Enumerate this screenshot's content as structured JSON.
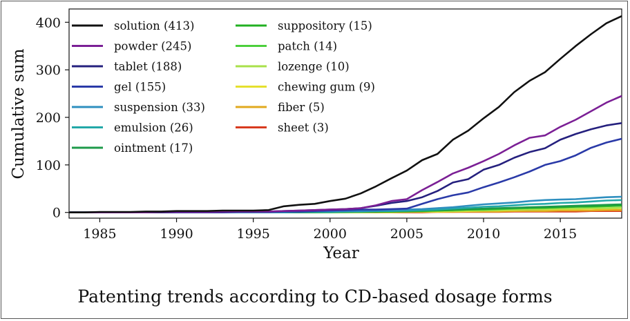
{
  "caption": "Patenting trends according to CD-based dosage forms",
  "chart_data": {
    "type": "line",
    "title": "",
    "xlabel": "Year",
    "ylabel": "Cumulative sum",
    "xlim": [
      1983,
      2019
    ],
    "ylim": [
      -12,
      428
    ],
    "x_ticks": [
      1985,
      1990,
      1995,
      2000,
      2005,
      2010,
      2015
    ],
    "y_ticks": [
      0,
      100,
      200,
      300,
      400
    ],
    "grid": false,
    "legend_position": "top-left",
    "legend_columns": 2,
    "x": [
      1983,
      1984,
      1985,
      1986,
      1987,
      1988,
      1989,
      1990,
      1991,
      1992,
      1993,
      1994,
      1995,
      1996,
      1997,
      1998,
      1999,
      2000,
      2001,
      2002,
      2003,
      2004,
      2005,
      2006,
      2007,
      2008,
      2009,
      2010,
      2011,
      2012,
      2013,
      2014,
      2015,
      2016,
      2017,
      2018,
      2019
    ],
    "series": [
      {
        "name": "solution (413)",
        "color": "#111111",
        "values": [
          0,
          0,
          1,
          1,
          1,
          2,
          2,
          3,
          3,
          3,
          4,
          4,
          4,
          5,
          13,
          16,
          18,
          24,
          29,
          40,
          55,
          72,
          88,
          110,
          123,
          153,
          172,
          198,
          222,
          253,
          277,
          295,
          323,
          350,
          375,
          398,
          413
        ]
      },
      {
        "name": "powder (245)",
        "color": "#7b1f95",
        "values": [
          0,
          0,
          0,
          0,
          0,
          0,
          1,
          1,
          1,
          1,
          2,
          2,
          2,
          2,
          3,
          4,
          5,
          6,
          7,
          9,
          15,
          24,
          28,
          47,
          64,
          82,
          94,
          108,
          123,
          141,
          157,
          162,
          180,
          195,
          213,
          231,
          245
        ]
      },
      {
        "name": "tablet (188)",
        "color": "#25207e",
        "values": [
          0,
          0,
          0,
          0,
          0,
          0,
          0,
          1,
          1,
          1,
          1,
          2,
          2,
          2,
          3,
          4,
          5,
          6,
          7,
          9,
          14,
          20,
          24,
          32,
          45,
          63,
          70,
          90,
          100,
          115,
          127,
          135,
          153,
          165,
          175,
          183,
          188
        ]
      },
      {
        "name": "gel (155)",
        "color": "#2a3aa8",
        "values": [
          0,
          0,
          0,
          0,
          0,
          0,
          0,
          0,
          0,
          0,
          0,
          1,
          1,
          1,
          2,
          2,
          3,
          4,
          5,
          6,
          6,
          7,
          8,
          18,
          28,
          36,
          42,
          53,
          63,
          74,
          86,
          100,
          108,
          120,
          136,
          147,
          155
        ]
      },
      {
        "name": "suspension (33)",
        "color": "#2e8fbf",
        "values": [
          0,
          0,
          0,
          0,
          0,
          0,
          0,
          0,
          0,
          0,
          0,
          0,
          0,
          0,
          1,
          1,
          2,
          2,
          3,
          3,
          4,
          5,
          6,
          7,
          9,
          11,
          14,
          17,
          19,
          21,
          24,
          26,
          27,
          28,
          30,
          32,
          33
        ]
      },
      {
        "name": "emulsion (26)",
        "color": "#22a8a8",
        "values": [
          0,
          0,
          0,
          0,
          0,
          0,
          0,
          0,
          0,
          0,
          0,
          0,
          0,
          0,
          0,
          1,
          1,
          1,
          2,
          2,
          3,
          3,
          4,
          5,
          6,
          8,
          10,
          12,
          13,
          15,
          17,
          18,
          20,
          21,
          23,
          25,
          26
        ]
      },
      {
        "name": "ointment (17)",
        "color": "#1e9a4a",
        "values": [
          0,
          0,
          0,
          0,
          0,
          0,
          0,
          0,
          0,
          0,
          0,
          0,
          0,
          0,
          0,
          0,
          1,
          1,
          1,
          2,
          2,
          3,
          3,
          4,
          5,
          6,
          7,
          8,
          9,
          10,
          11,
          12,
          13,
          14,
          15,
          16,
          17
        ]
      },
      {
        "name": "suppository (15)",
        "color": "#22b022",
        "values": [
          0,
          0,
          0,
          0,
          0,
          0,
          0,
          0,
          0,
          0,
          0,
          0,
          0,
          0,
          0,
          0,
          0,
          1,
          1,
          1,
          2,
          2,
          3,
          3,
          4,
          5,
          6,
          7,
          8,
          9,
          10,
          10,
          11,
          12,
          13,
          14,
          15
        ]
      },
      {
        "name": "patch (14)",
        "color": "#4ccf3c",
        "values": [
          0,
          0,
          0,
          0,
          0,
          0,
          0,
          0,
          0,
          0,
          0,
          0,
          0,
          0,
          0,
          0,
          0,
          0,
          1,
          1,
          1,
          2,
          2,
          3,
          4,
          5,
          6,
          6,
          7,
          8,
          9,
          10,
          11,
          12,
          12,
          13,
          14
        ]
      },
      {
        "name": "lozenge (10)",
        "color": "#a8e04a",
        "values": [
          0,
          0,
          0,
          0,
          0,
          0,
          0,
          0,
          0,
          0,
          0,
          0,
          0,
          0,
          0,
          0,
          0,
          0,
          0,
          1,
          1,
          1,
          2,
          2,
          3,
          3,
          4,
          4,
          5,
          6,
          6,
          7,
          8,
          8,
          9,
          9,
          10
        ]
      },
      {
        "name": "chewing gum (9)",
        "color": "#e5e02e",
        "values": [
          0,
          0,
          0,
          0,
          0,
          0,
          0,
          0,
          0,
          0,
          0,
          0,
          0,
          0,
          0,
          0,
          0,
          0,
          0,
          0,
          1,
          1,
          1,
          2,
          2,
          3,
          3,
          4,
          4,
          5,
          6,
          6,
          7,
          7,
          8,
          8,
          9
        ]
      },
      {
        "name": "fiber (5)",
        "color": "#e0a91e",
        "values": [
          0,
          0,
          0,
          0,
          0,
          0,
          0,
          0,
          0,
          0,
          0,
          0,
          0,
          0,
          0,
          0,
          0,
          0,
          0,
          0,
          0,
          0,
          1,
          1,
          1,
          1,
          2,
          2,
          2,
          3,
          3,
          3,
          4,
          4,
          4,
          5,
          5
        ]
      },
      {
        "name": "sheet (3)",
        "color": "#d83a1e",
        "values": [
          0,
          0,
          0,
          0,
          0,
          0,
          0,
          0,
          0,
          0,
          0,
          0,
          0,
          0,
          0,
          0,
          0,
          0,
          0,
          0,
          0,
          0,
          0,
          0,
          1,
          1,
          1,
          1,
          1,
          2,
          2,
          2,
          2,
          2,
          3,
          3,
          3
        ]
      }
    ]
  }
}
